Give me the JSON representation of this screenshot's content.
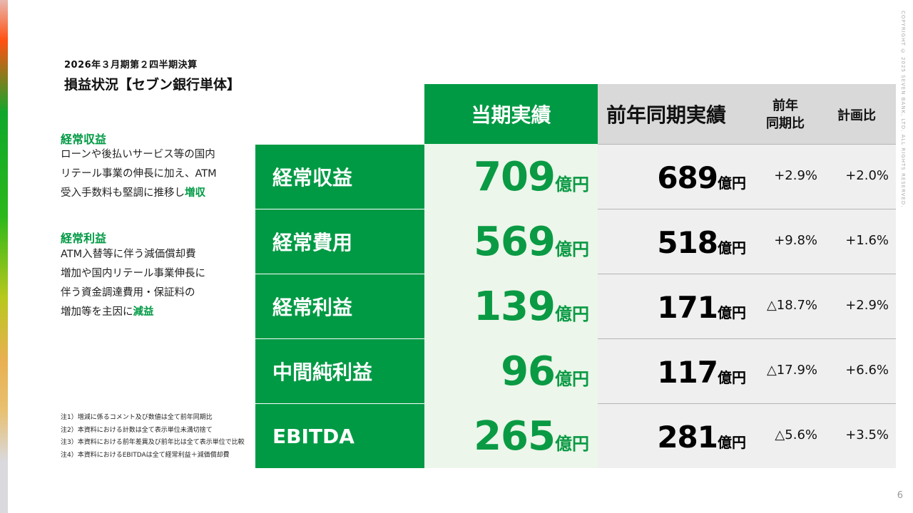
{
  "header": {
    "subtitle": "2026年３月期第２四半期決算",
    "title": "損益状況【セブン銀行単体】"
  },
  "sections": [
    {
      "heading": "経常収益",
      "lines": [
        "ローンや後払いサービス等の国内",
        "リテール事業の伸長に加え、ATM",
        "受入手数料も堅調に推移し"
      ],
      "highlight": "増収"
    },
    {
      "heading": "経常利益",
      "lines": [
        "ATM入替等に伴う減価償却費",
        "増加や国内リテール事業伸長に",
        "伴う資金調達費用・保証料の",
        "増加等を主因に"
      ],
      "highlight": "減益"
    }
  ],
  "notes": [
    "注1）増減に係るコメント及び数値は全て前年同期比",
    "注2）本資料における計数は全て表示単位未満切捨て",
    "注3）本資料における前年差異及び前年比は全て表示単位で比較",
    "注4）本資料におけるEBITDAは全て経常利益＋減価償却費"
  ],
  "table": {
    "headers": {
      "current": "当期実績",
      "previous": "前年同期実績",
      "yoy": [
        "前年",
        "同期比"
      ],
      "plan": "計画比"
    },
    "unit": "億円",
    "rows": [
      {
        "label": "経常収益",
        "current": "709",
        "previous": "689",
        "yoy": "+2.9%",
        "plan": "+2.0%"
      },
      {
        "label": "経常費用",
        "current": "569",
        "previous": "518",
        "yoy": "+9.8%",
        "plan": "+1.6%"
      },
      {
        "label": "経常利益",
        "current": "139",
        "previous": "171",
        "yoy": "△18.7%",
        "plan": "+2.9%"
      },
      {
        "label": "中間純利益",
        "current": "96",
        "previous": "117",
        "yoy": "△17.9%",
        "plan": "+6.6%"
      },
      {
        "label": "EBITDA",
        "current": "265",
        "previous": "281",
        "yoy": "△5.6%",
        "plan": "+3.5%"
      }
    ]
  },
  "copyright": "COPYRIGHT © 2025 SEVEN BANK, LTD. ALL RIGHTS RESERVED.",
  "page_number": "6",
  "colors": {
    "brand_green": "#009a44",
    "current_bg": "#ecf6ea",
    "previous_bg": "#efefef",
    "header_grey": "#d9d9d9"
  }
}
